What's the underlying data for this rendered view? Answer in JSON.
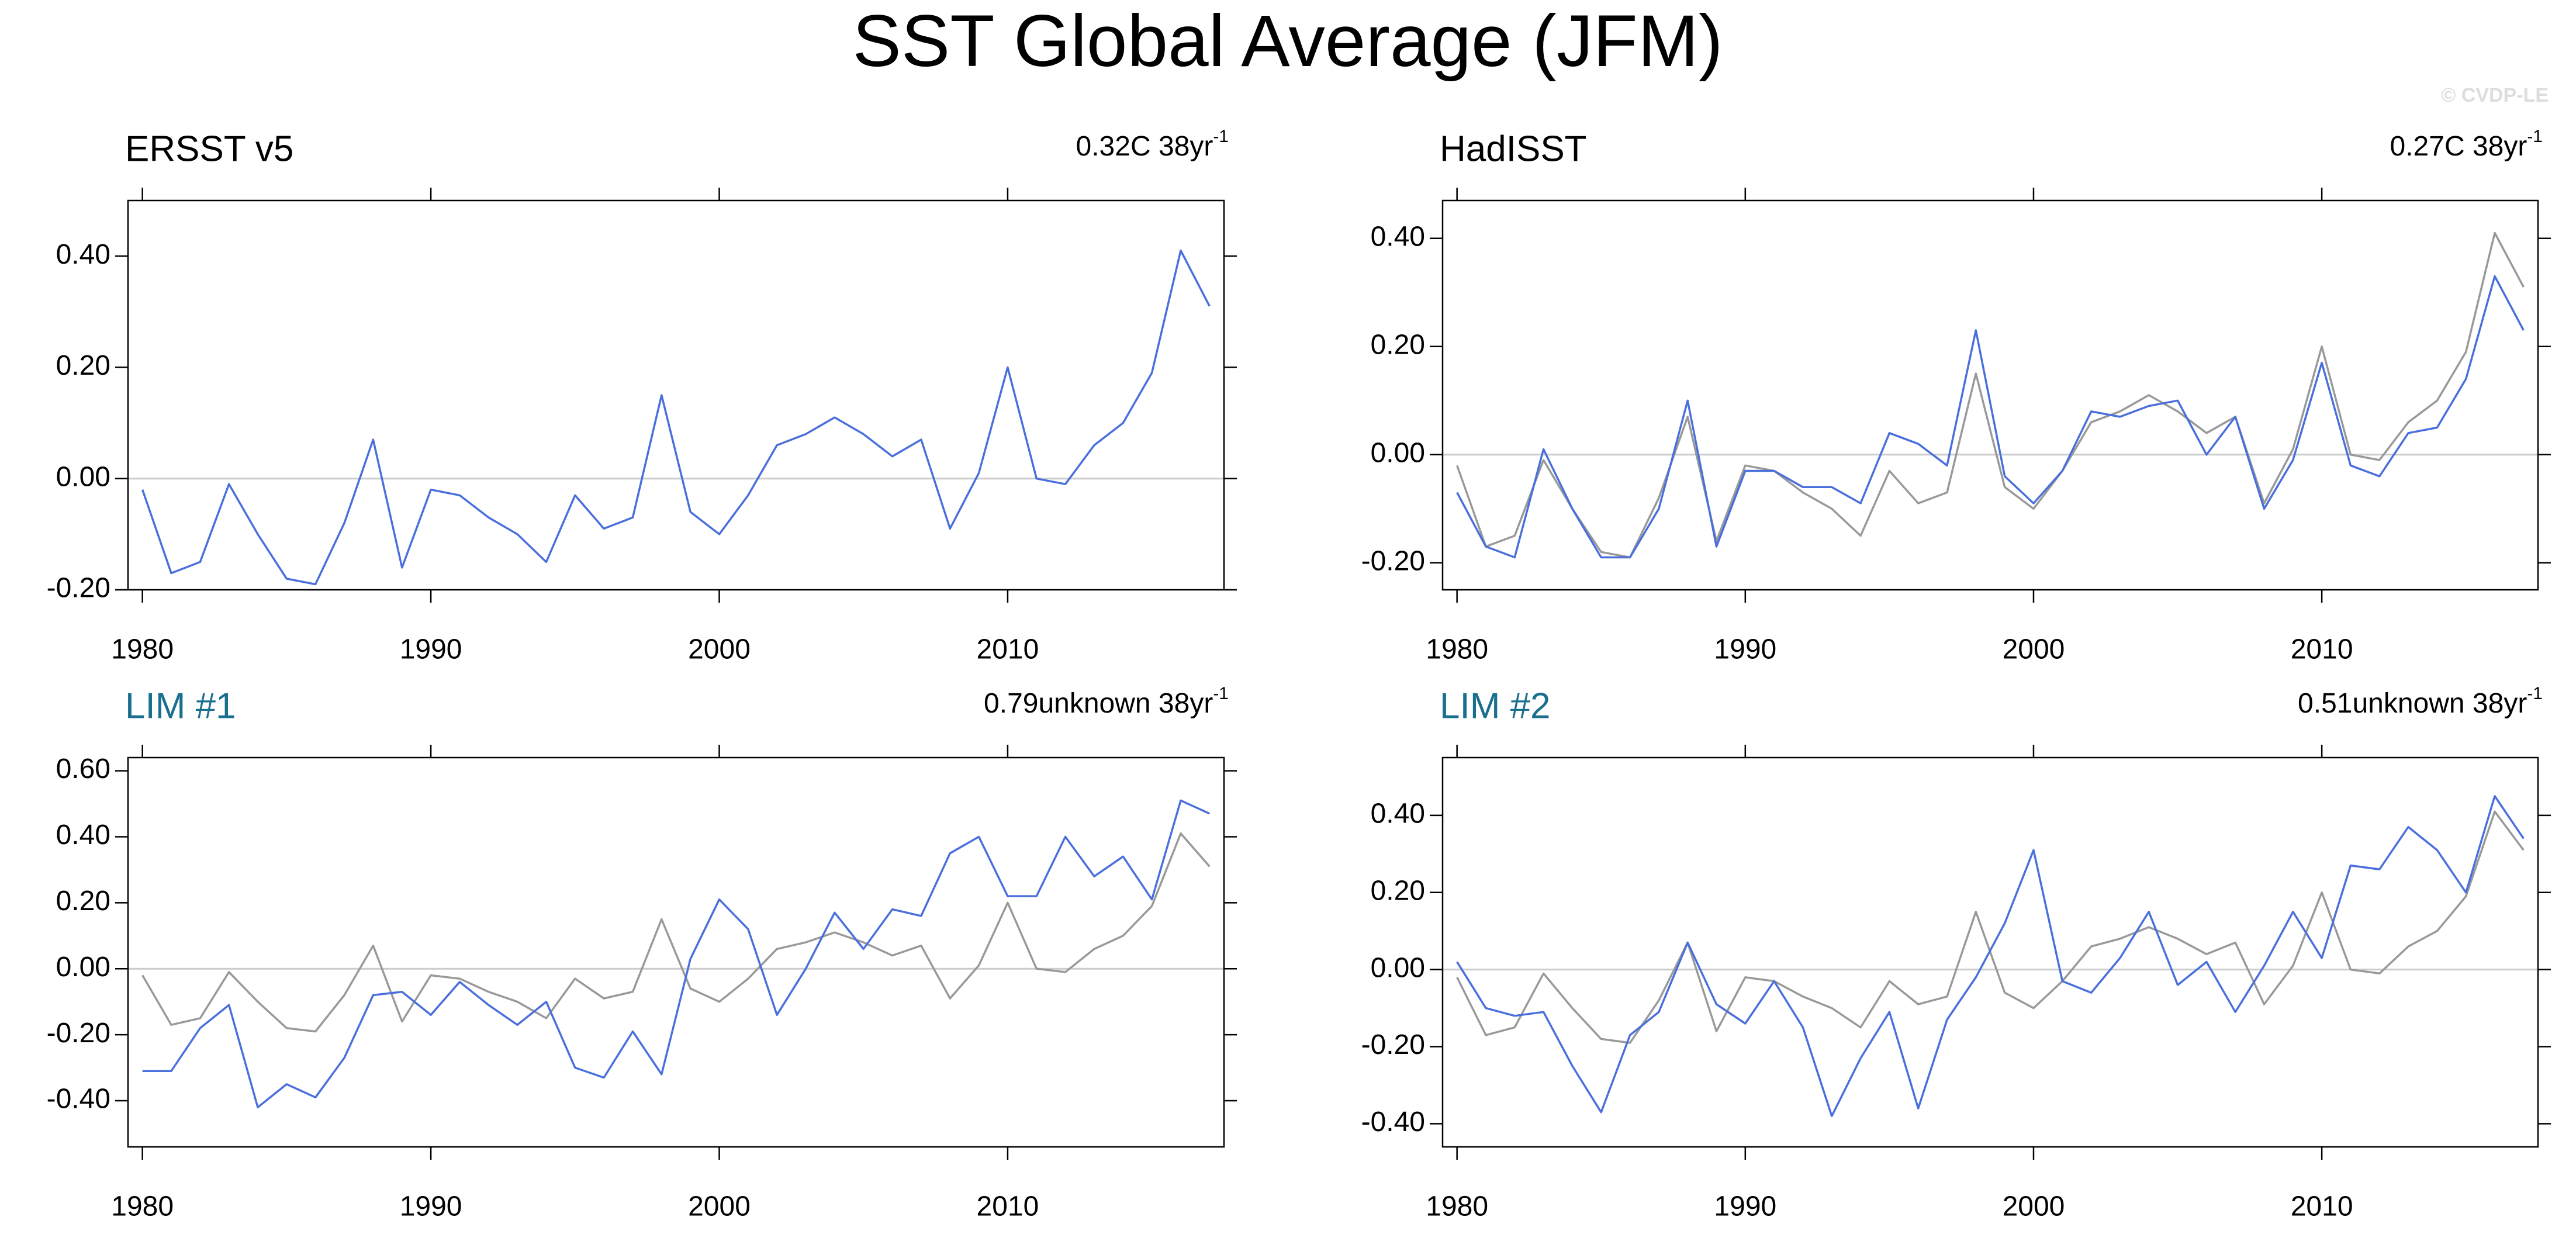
{
  "title": "SST Global Average (JFM)",
  "watermark": "© CVDP-LE",
  "chart_data": [
    {
      "type": "line",
      "title": "ERSST v5",
      "title_color": "#000000",
      "trend": "0.32C 38yr",
      "trend_superscript": "-1",
      "x": [
        1980,
        1981,
        1982,
        1983,
        1984,
        1985,
        1986,
        1987,
        1988,
        1989,
        1990,
        1991,
        1992,
        1993,
        1994,
        1995,
        1996,
        1997,
        1998,
        1999,
        2000,
        2001,
        2002,
        2003,
        2004,
        2005,
        2006,
        2007,
        2008,
        2009,
        2010,
        2011,
        2012,
        2013,
        2014,
        2015,
        2016,
        2017
      ],
      "xlim": [
        1979.5,
        2017.5
      ],
      "xticks": [
        1980,
        1990,
        2000,
        2010
      ],
      "ylim": [
        -0.2,
        0.5
      ],
      "yticks": [
        {
          "value": -0.2,
          "label": "-0.20"
        },
        {
          "value": 0,
          "label": "0.00"
        },
        {
          "value": 0.2,
          "label": "0.20"
        },
        {
          "value": 0.4,
          "label": "0.40"
        }
      ],
      "reference_line": 0,
      "series": [
        {
          "color": "#4a6fdc",
          "values": [
            -0.02,
            -0.17,
            -0.15,
            -0.01,
            -0.1,
            -0.18,
            -0.19,
            -0.08,
            0.07,
            -0.16,
            -0.02,
            -0.03,
            -0.07,
            -0.1,
            -0.15,
            -0.03,
            -0.09,
            -0.07,
            0.15,
            -0.06,
            -0.1,
            -0.03,
            0.06,
            0.08,
            0.11,
            0.08,
            0.04,
            0.07,
            -0.09,
            0.01,
            0.2,
            0.0,
            -0.01,
            0.06,
            0.1,
            0.19,
            0.41,
            0.31
          ]
        }
      ]
    },
    {
      "type": "line",
      "title": "HadISST",
      "title_color": "#000000",
      "trend": "0.27C 38yr",
      "trend_superscript": "-1",
      "x": [
        1980,
        1981,
        1982,
        1983,
        1984,
        1985,
        1986,
        1987,
        1988,
        1989,
        1990,
        1991,
        1992,
        1993,
        1994,
        1995,
        1996,
        1997,
        1998,
        1999,
        2000,
        2001,
        2002,
        2003,
        2004,
        2005,
        2006,
        2007,
        2008,
        2009,
        2010,
        2011,
        2012,
        2013,
        2014,
        2015,
        2016,
        2017
      ],
      "xlim": [
        1979.5,
        2017.5
      ],
      "xticks": [
        1980,
        1990,
        2000,
        2010
      ],
      "ylim": [
        -0.25,
        0.47
      ],
      "yticks": [
        {
          "value": -0.2,
          "label": "-0.20"
        },
        {
          "value": 0,
          "label": "0.00"
        },
        {
          "value": 0.2,
          "label": "0.20"
        },
        {
          "value": 0.4,
          "label": "0.40"
        }
      ],
      "reference_line": 0,
      "series": [
        {
          "color": "#999999",
          "values": [
            -0.02,
            -0.17,
            -0.15,
            -0.01,
            -0.1,
            -0.18,
            -0.19,
            -0.08,
            0.07,
            -0.16,
            -0.02,
            -0.03,
            -0.07,
            -0.1,
            -0.15,
            -0.03,
            -0.09,
            -0.07,
            0.15,
            -0.06,
            -0.1,
            -0.03,
            0.06,
            0.08,
            0.11,
            0.08,
            0.04,
            0.07,
            -0.09,
            0.01,
            0.2,
            0.0,
            -0.01,
            0.06,
            0.1,
            0.19,
            0.41,
            0.31
          ]
        },
        {
          "color": "#4a6fdc",
          "values": [
            -0.07,
            -0.17,
            -0.19,
            0.01,
            -0.1,
            -0.19,
            -0.19,
            -0.1,
            0.1,
            -0.17,
            -0.03,
            -0.03,
            -0.06,
            -0.06,
            -0.09,
            0.04,
            0.02,
            -0.02,
            0.23,
            -0.04,
            -0.09,
            -0.03,
            0.08,
            0.07,
            0.09,
            0.1,
            0.0,
            0.07,
            -0.1,
            -0.01,
            0.17,
            -0.02,
            -0.04,
            0.04,
            0.05,
            0.14,
            0.33,
            0.23
          ]
        }
      ]
    },
    {
      "type": "line",
      "title": "LIM #1",
      "title_color": "#1a6e8e",
      "trend": "0.79unknown 38yr",
      "trend_superscript": "-1",
      "x": [
        1980,
        1981,
        1982,
        1983,
        1984,
        1985,
        1986,
        1987,
        1988,
        1989,
        1990,
        1991,
        1992,
        1993,
        1994,
        1995,
        1996,
        1997,
        1998,
        1999,
        2000,
        2001,
        2002,
        2003,
        2004,
        2005,
        2006,
        2007,
        2008,
        2009,
        2010,
        2011,
        2012,
        2013,
        2014,
        2015,
        2016,
        2017
      ],
      "xlim": [
        1979.5,
        2017.5
      ],
      "xticks": [
        1980,
        1990,
        2000,
        2010
      ],
      "ylim": [
        -0.54,
        0.64
      ],
      "yticks": [
        {
          "value": -0.4,
          "label": "-0.40"
        },
        {
          "value": -0.2,
          "label": "-0.20"
        },
        {
          "value": 0,
          "label": "0.00"
        },
        {
          "value": 0.2,
          "label": "0.20"
        },
        {
          "value": 0.4,
          "label": "0.40"
        },
        {
          "value": 0.6,
          "label": "0.60"
        }
      ],
      "reference_line": 0,
      "series": [
        {
          "color": "#999999",
          "values": [
            -0.02,
            -0.17,
            -0.15,
            -0.01,
            -0.1,
            -0.18,
            -0.19,
            -0.08,
            0.07,
            -0.16,
            -0.02,
            -0.03,
            -0.07,
            -0.1,
            -0.15,
            -0.03,
            -0.09,
            -0.07,
            0.15,
            -0.06,
            -0.1,
            -0.03,
            0.06,
            0.08,
            0.11,
            0.08,
            0.04,
            0.07,
            -0.09,
            0.01,
            0.2,
            0.0,
            -0.01,
            0.06,
            0.1,
            0.19,
            0.41,
            0.31
          ]
        },
        {
          "color": "#4a6fdc",
          "values": [
            -0.31,
            -0.31,
            -0.18,
            -0.11,
            -0.42,
            -0.35,
            -0.39,
            -0.27,
            -0.08,
            -0.07,
            -0.14,
            -0.04,
            -0.11,
            -0.17,
            -0.1,
            -0.3,
            -0.33,
            -0.19,
            -0.32,
            0.03,
            0.21,
            0.12,
            -0.14,
            0.0,
            0.17,
            0.06,
            0.18,
            0.16,
            0.35,
            0.4,
            0.22,
            0.22,
            0.4,
            0.28,
            0.34,
            0.21,
            0.51,
            0.47
          ]
        }
      ]
    },
    {
      "type": "line",
      "title": "LIM #2",
      "title_color": "#1a6e8e",
      "trend": "0.51unknown 38yr",
      "trend_superscript": "-1",
      "x": [
        1980,
        1981,
        1982,
        1983,
        1984,
        1985,
        1986,
        1987,
        1988,
        1989,
        1990,
        1991,
        1992,
        1993,
        1994,
        1995,
        1996,
        1997,
        1998,
        1999,
        2000,
        2001,
        2002,
        2003,
        2004,
        2005,
        2006,
        2007,
        2008,
        2009,
        2010,
        2011,
        2012,
        2013,
        2014,
        2015,
        2016,
        2017
      ],
      "xlim": [
        1979.5,
        2017.5
      ],
      "xticks": [
        1980,
        1990,
        2000,
        2010
      ],
      "ylim": [
        -0.46,
        0.55
      ],
      "yticks": [
        {
          "value": -0.4,
          "label": "-0.40"
        },
        {
          "value": -0.2,
          "label": "-0.20"
        },
        {
          "value": 0,
          "label": "0.00"
        },
        {
          "value": 0.2,
          "label": "0.20"
        },
        {
          "value": 0.4,
          "label": "0.40"
        }
      ],
      "reference_line": 0,
      "series": [
        {
          "color": "#999999",
          "values": [
            -0.02,
            -0.17,
            -0.15,
            -0.01,
            -0.1,
            -0.18,
            -0.19,
            -0.08,
            0.07,
            -0.16,
            -0.02,
            -0.03,
            -0.07,
            -0.1,
            -0.15,
            -0.03,
            -0.09,
            -0.07,
            0.15,
            -0.06,
            -0.1,
            -0.03,
            0.06,
            0.08,
            0.11,
            0.08,
            0.04,
            0.07,
            -0.09,
            0.01,
            0.2,
            0.0,
            -0.01,
            0.06,
            0.1,
            0.19,
            0.41,
            0.31
          ]
        },
        {
          "color": "#4a6fdc",
          "values": [
            0.02,
            -0.1,
            -0.12,
            -0.11,
            -0.25,
            -0.37,
            -0.17,
            -0.11,
            0.07,
            -0.09,
            -0.14,
            -0.03,
            -0.15,
            -0.38,
            -0.23,
            -0.11,
            -0.36,
            -0.13,
            -0.02,
            0.12,
            0.31,
            -0.03,
            -0.06,
            0.03,
            0.15,
            -0.04,
            0.02,
            -0.11,
            0.01,
            0.15,
            0.03,
            0.27,
            0.26,
            0.37,
            0.31,
            0.2,
            0.45,
            0.34
          ]
        }
      ]
    }
  ]
}
